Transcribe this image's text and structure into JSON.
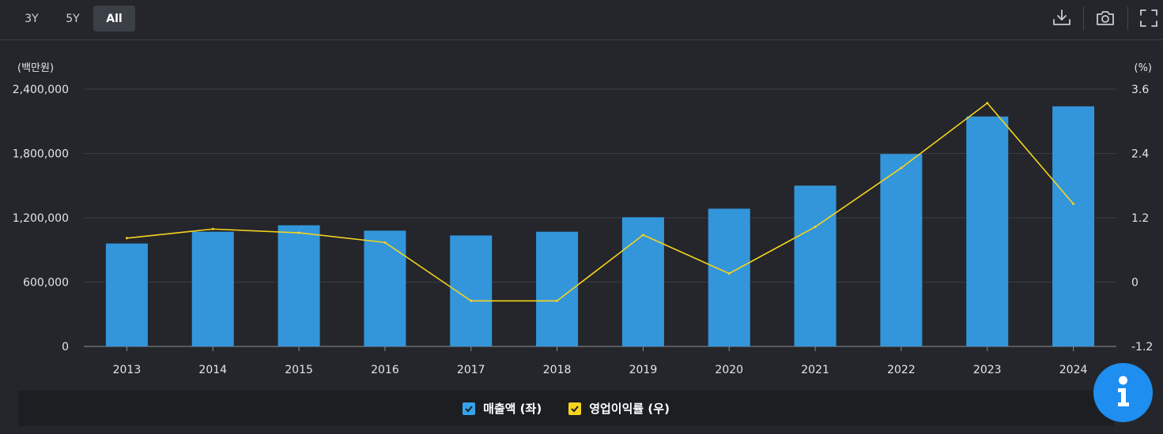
{
  "toolbar": {
    "range_buttons": [
      {
        "label": "3Y",
        "active": false
      },
      {
        "label": "5Y",
        "active": false
      },
      {
        "label": "All",
        "active": true
      }
    ],
    "icons": [
      "download-icon",
      "camera-icon",
      "fullscreen-icon"
    ]
  },
  "chart_data": {
    "type": "bar",
    "categories": [
      "2013",
      "2014",
      "2015",
      "2016",
      "2017",
      "2018",
      "2019",
      "2020",
      "2021",
      "2022",
      "2023",
      "2024"
    ],
    "series": [
      {
        "name": "매출액 (좌)",
        "type": "bar",
        "axis": "left",
        "color": "#3396db",
        "values": [
          960000,
          1070000,
          1130000,
          1080000,
          1035000,
          1070000,
          1205000,
          1285000,
          1500000,
          1795000,
          2145000,
          2240000
        ]
      },
      {
        "name": "영업이익률 (우)",
        "type": "line",
        "axis": "right",
        "color": "#f5d31e",
        "values": [
          0.82,
          0.99,
          0.92,
          0.74,
          -0.35,
          -0.35,
          0.88,
          0.16,
          1.03,
          2.13,
          3.34,
          1.46
        ]
      }
    ],
    "left_axis": {
      "unit_label": "(백만원)",
      "ylim": [
        0,
        2400000
      ],
      "ticks": [
        0,
        600000,
        1200000,
        1800000,
        2400000
      ],
      "tick_labels": [
        "0",
        "600,000",
        "1,200,000",
        "1,800,000",
        "2,400,000"
      ]
    },
    "right_axis": {
      "unit_label": "(%)",
      "ylim": [
        -1.2,
        3.6
      ],
      "ticks": [
        -1.2,
        0,
        1.2,
        2.4,
        3.6
      ],
      "tick_labels": [
        "-1.2",
        "0",
        "1.2",
        "2.4",
        "3.6"
      ]
    },
    "grid": true,
    "legend_position": "bottom-center"
  },
  "legend": {
    "items": [
      {
        "label": "매출액 (좌)",
        "color": "#35a2ec"
      },
      {
        "label": "영업이익률 (우)",
        "color": "#f5d31e"
      }
    ]
  },
  "info_button": {
    "icon": "info-icon",
    "color": "#1e8ef0"
  }
}
